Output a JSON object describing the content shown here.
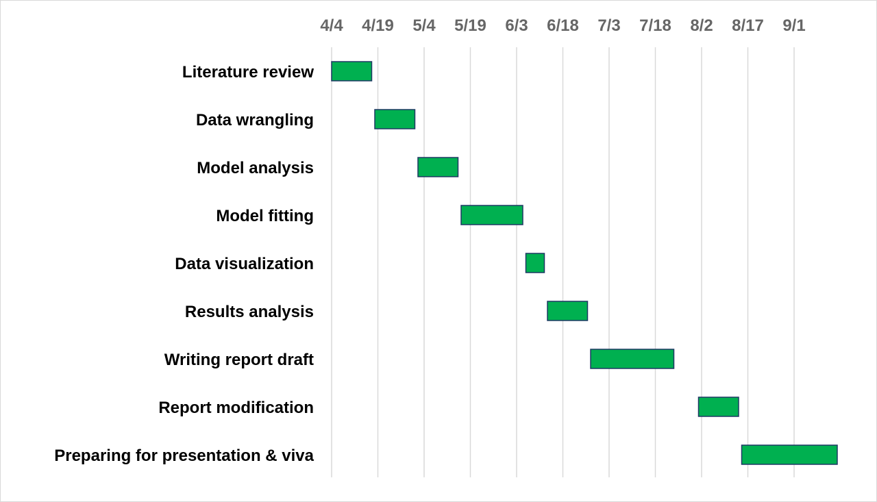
{
  "chart_data": {
    "type": "bar",
    "orientation": "horizontal",
    "subtype": "gantt",
    "title": "",
    "xlabel": "",
    "ylabel": "",
    "x_axis_position": "top",
    "x_ticks": [
      "4/4",
      "4/19",
      "5/4",
      "5/19",
      "6/3",
      "6/18",
      "7/3",
      "7/18",
      "8/2",
      "8/17",
      "9/1"
    ],
    "tick_interval_days": 15,
    "xlim": [
      "4/4",
      "9/16"
    ],
    "grid": true,
    "bar_color": "#00b050",
    "bar_edge_color": "#1f3864",
    "tasks": [
      {
        "name": "Literature review",
        "start": "4/4",
        "end": "4/17"
      },
      {
        "name": "Data wrangling",
        "start": "4/18",
        "end": "5/1"
      },
      {
        "name": "Model analysis",
        "start": "5/2",
        "end": "5/15"
      },
      {
        "name": "Model fitting",
        "start": "5/16",
        "end": "6/5"
      },
      {
        "name": "Data visualization",
        "start": "6/6",
        "end": "6/12"
      },
      {
        "name": "Results analysis",
        "start": "6/13",
        "end": "6/26"
      },
      {
        "name": "Writing report draft",
        "start": "6/27",
        "end": "7/24"
      },
      {
        "name": "Report modification",
        "start": "8/1",
        "end": "8/14"
      },
      {
        "name": "Preparing for presentation & viva",
        "start": "8/15",
        "end": "9/15"
      }
    ]
  }
}
